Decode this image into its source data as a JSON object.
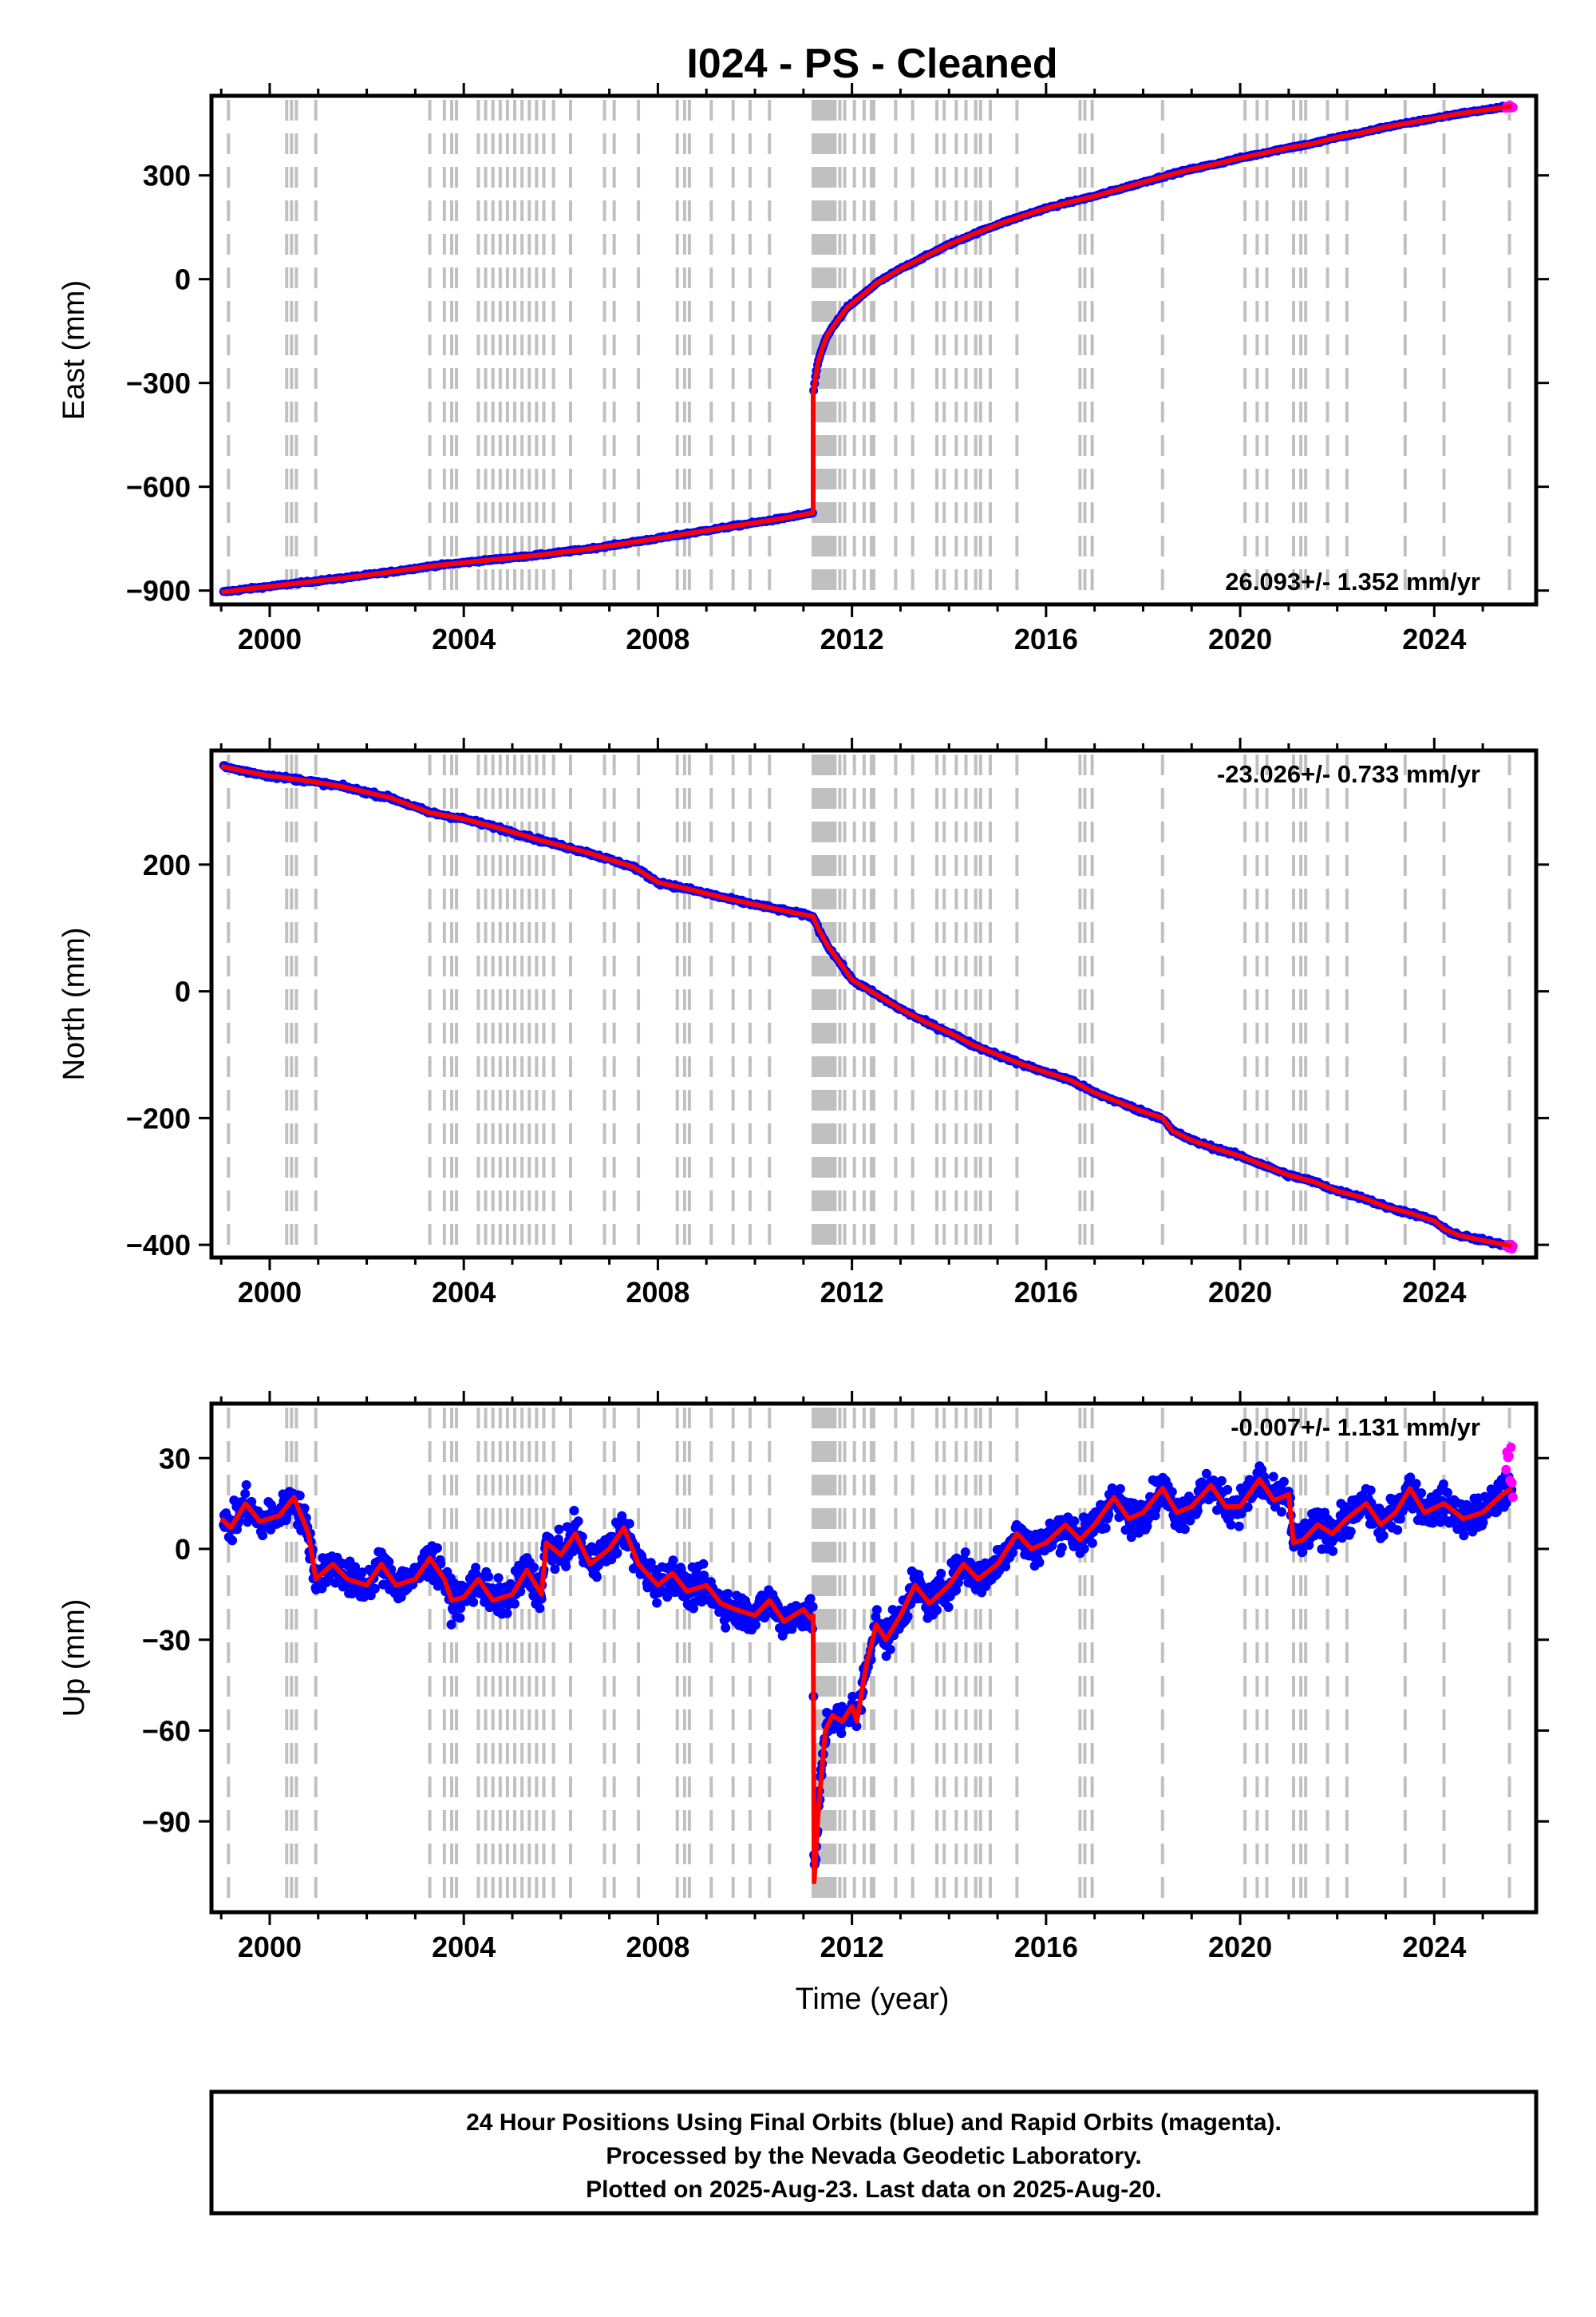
{
  "chart_data": {
    "type": "scatter",
    "title": "I024  - PS - Cleaned",
    "x_label": "Time (year)",
    "x_range": [
      1998.8,
      2026.1
    ],
    "x_ticks": [
      2000,
      2004,
      2008,
      2012,
      2016,
      2020,
      2024
    ],
    "series_colors": {
      "final_orbits": "#0000ff",
      "rapid_orbits": "#ff00ff",
      "model": "#ff0000",
      "events": "#c0c0c0"
    },
    "events": [
      1999.15,
      2000.35,
      2000.45,
      2000.55,
      2000.95,
      2003.3,
      2003.6,
      2003.75,
      2003.85,
      2004.3,
      2004.45,
      2004.6,
      2004.75,
      2004.9,
      2005.05,
      2005.2,
      2005.35,
      2005.5,
      2005.65,
      2005.85,
      2006.2,
      2006.9,
      2007.1,
      2007.6,
      2008.4,
      2008.55,
      2008.65,
      2009.1,
      2009.55,
      2009.9,
      2010.3,
      2011.2,
      2011.25,
      2011.3,
      2011.35,
      2011.4,
      2011.45,
      2011.5,
      2011.55,
      2011.6,
      2011.65,
      2011.75,
      2011.85,
      2012.05,
      2012.25,
      2012.4,
      2012.45,
      2012.9,
      2013.25,
      2013.75,
      2013.9,
      2014.15,
      2014.35,
      2014.55,
      2014.65,
      2014.85,
      2015.4,
      2016.7,
      2016.8,
      2016.95,
      2018.4,
      2020.1,
      2020.35,
      2020.55,
      2021.1,
      2021.25,
      2021.35,
      2021.8,
      2022.2,
      2023.4,
      2024.2,
      2025.55
    ],
    "panels": [
      {
        "component": "East",
        "ylabel": "East (mm)",
        "ylim": [
          -940,
          530
        ],
        "yticks": [
          -900,
          -600,
          -300,
          0,
          300
        ],
        "ytick_labels": [
          "−900",
          "−600",
          "−300",
          "0",
          "300"
        ],
        "rate_text": "26.093+/- 1.352 mm/yr",
        "rate_position": "bottom-right",
        "model_trace": [
          [
            1999.0,
            -905
          ],
          [
            1999.5,
            -896
          ],
          [
            2000.0,
            -888
          ],
          [
            2000.8,
            -875
          ],
          [
            2001.5,
            -864
          ],
          [
            2002.5,
            -846
          ],
          [
            2003.4,
            -828
          ],
          [
            2004.5,
            -812
          ],
          [
            2005.5,
            -798
          ],
          [
            2006.5,
            -781
          ],
          [
            2007.5,
            -760
          ],
          [
            2008.5,
            -738
          ],
          [
            2009.5,
            -715
          ],
          [
            2010.5,
            -693
          ],
          [
            2011.2,
            -675
          ],
          [
            2011.2,
            -330
          ],
          [
            2011.3,
            -240
          ],
          [
            2011.4,
            -195
          ],
          [
            2011.5,
            -160
          ],
          [
            2011.7,
            -120
          ],
          [
            2011.9,
            -82
          ],
          [
            2012.2,
            -48
          ],
          [
            2012.5,
            -12
          ],
          [
            2013.0,
            30
          ],
          [
            2013.5,
            65
          ],
          [
            2014.0,
            100
          ],
          [
            2014.5,
            130
          ],
          [
            2015.0,
            158
          ],
          [
            2015.5,
            182
          ],
          [
            2016.0,
            205
          ],
          [
            2016.5,
            223
          ],
          [
            2017.0,
            240
          ],
          [
            2017.5,
            260
          ],
          [
            2018.0,
            280
          ],
          [
            2018.5,
            300
          ],
          [
            2019.0,
            318
          ],
          [
            2019.5,
            333
          ],
          [
            2020.0,
            350
          ],
          [
            2020.5,
            365
          ],
          [
            2021.0,
            380
          ],
          [
            2021.5,
            392
          ],
          [
            2022.0,
            410
          ],
          [
            2022.5,
            423
          ],
          [
            2023.0,
            440
          ],
          [
            2023.5,
            452
          ],
          [
            2024.0,
            465
          ],
          [
            2024.5,
            478
          ],
          [
            2025.0,
            488
          ],
          [
            2025.6,
            500
          ]
        ]
      },
      {
        "component": "North",
        "ylabel": "North (mm)",
        "ylim": [
          -420,
          380
        ],
        "yticks": [
          -400,
          -200,
          0,
          200
        ],
        "ytick_labels": [
          "−400",
          "−200",
          "0",
          "200"
        ],
        "rate_text": "-23.026+/- 0.733 mm/yr",
        "rate_position": "top-right",
        "model_trace": [
          [
            1999.0,
            355
          ],
          [
            1999.5,
            347
          ],
          [
            2000.0,
            340
          ],
          [
            2000.7,
            333
          ],
          [
            2001.5,
            323
          ],
          [
            2002.5,
            305
          ],
          [
            2003.3,
            282
          ],
          [
            2004.0,
            272
          ],
          [
            2004.7,
            258
          ],
          [
            2005.5,
            240
          ],
          [
            2006.5,
            220
          ],
          [
            2007.5,
            196
          ],
          [
            2008.0,
            172
          ],
          [
            2008.7,
            160
          ],
          [
            2009.5,
            145
          ],
          [
            2010.3,
            132
          ],
          [
            2011.2,
            118
          ],
          [
            2011.3,
            100
          ],
          [
            2011.5,
            72
          ],
          [
            2011.8,
            40
          ],
          [
            2012.0,
            18
          ],
          [
            2012.5,
            -5
          ],
          [
            2013.0,
            -28
          ],
          [
            2013.5,
            -48
          ],
          [
            2014.0,
            -65
          ],
          [
            2014.5,
            -85
          ],
          [
            2015.0,
            -100
          ],
          [
            2015.5,
            -115
          ],
          [
            2016.0,
            -128
          ],
          [
            2016.5,
            -140
          ],
          [
            2017.0,
            -160
          ],
          [
            2017.5,
            -175
          ],
          [
            2018.0,
            -190
          ],
          [
            2018.4,
            -200
          ],
          [
            2018.6,
            -220
          ],
          [
            2019.0,
            -235
          ],
          [
            2019.5,
            -248
          ],
          [
            2020.0,
            -260
          ],
          [
            2020.5,
            -275
          ],
          [
            2021.0,
            -290
          ],
          [
            2021.5,
            -300
          ],
          [
            2022.0,
            -315
          ],
          [
            2022.5,
            -325
          ],
          [
            2023.0,
            -340
          ],
          [
            2023.5,
            -350
          ],
          [
            2024.0,
            -362
          ],
          [
            2024.2,
            -375
          ],
          [
            2024.5,
            -385
          ],
          [
            2025.0,
            -393
          ],
          [
            2025.6,
            -402
          ]
        ]
      },
      {
        "component": "Up",
        "ylabel": "Up (mm)",
        "ylim": [
          -120,
          48
        ],
        "yticks": [
          -90,
          -60,
          -30,
          0,
          30
        ],
        "ytick_labels": [
          "−90",
          "−60",
          "−30",
          "0",
          "30"
        ],
        "rate_text": "-0.007+/- 1.131 mm/yr",
        "rate_position": "top-right",
        "model_trace": [
          [
            1999.0,
            10
          ],
          [
            1999.2,
            7
          ],
          [
            1999.5,
            15
          ],
          [
            1999.8,
            9
          ],
          [
            2000.2,
            11
          ],
          [
            2000.5,
            17
          ],
          [
            2000.8,
            5
          ],
          [
            2000.95,
            -10
          ],
          [
            2001.3,
            -5
          ],
          [
            2001.6,
            -10
          ],
          [
            2002.0,
            -12
          ],
          [
            2002.3,
            -5
          ],
          [
            2002.6,
            -12
          ],
          [
            2003.0,
            -10
          ],
          [
            2003.3,
            -3
          ],
          [
            2003.6,
            -10
          ],
          [
            2003.75,
            -17
          ],
          [
            2004.0,
            -16
          ],
          [
            2004.3,
            -10
          ],
          [
            2004.6,
            -17
          ],
          [
            2005.0,
            -15
          ],
          [
            2005.3,
            -7
          ],
          [
            2005.6,
            -15
          ],
          [
            2005.7,
            2
          ],
          [
            2006.0,
            -2
          ],
          [
            2006.3,
            5
          ],
          [
            2006.6,
            -5
          ],
          [
            2007.0,
            0
          ],
          [
            2007.3,
            7
          ],
          [
            2007.6,
            -5
          ],
          [
            2008.0,
            -12
          ],
          [
            2008.3,
            -8
          ],
          [
            2008.6,
            -14
          ],
          [
            2009.0,
            -12
          ],
          [
            2009.3,
            -18
          ],
          [
            2009.6,
            -20
          ],
          [
            2010.0,
            -22
          ],
          [
            2010.3,
            -17
          ],
          [
            2010.6,
            -24
          ],
          [
            2011.0,
            -20
          ],
          [
            2011.15,
            -23
          ],
          [
            2011.2,
            -22
          ],
          [
            2011.22,
            -110
          ],
          [
            2011.3,
            -88
          ],
          [
            2011.45,
            -60
          ],
          [
            2011.6,
            -55
          ],
          [
            2011.8,
            -57
          ],
          [
            2012.0,
            -52
          ],
          [
            2012.1,
            -57
          ],
          [
            2012.3,
            -38
          ],
          [
            2012.5,
            -25
          ],
          [
            2012.7,
            -30
          ],
          [
            2013.0,
            -22
          ],
          [
            2013.3,
            -12
          ],
          [
            2013.6,
            -18
          ],
          [
            2014.0,
            -12
          ],
          [
            2014.3,
            -5
          ],
          [
            2014.6,
            -10
          ],
          [
            2015.0,
            -5
          ],
          [
            2015.4,
            5
          ],
          [
            2015.7,
            0
          ],
          [
            2016.0,
            2
          ],
          [
            2016.4,
            8
          ],
          [
            2016.7,
            3
          ],
          [
            2017.0,
            8
          ],
          [
            2017.4,
            17
          ],
          [
            2017.7,
            10
          ],
          [
            2018.0,
            12
          ],
          [
            2018.4,
            20
          ],
          [
            2018.7,
            12
          ],
          [
            2019.0,
            14
          ],
          [
            2019.4,
            21
          ],
          [
            2019.7,
            14
          ],
          [
            2020.0,
            14
          ],
          [
            2020.4,
            23
          ],
          [
            2020.7,
            16
          ],
          [
            2021.0,
            18
          ],
          [
            2021.1,
            2
          ],
          [
            2021.3,
            3
          ],
          [
            2021.6,
            8
          ],
          [
            2021.9,
            5
          ],
          [
            2022.2,
            10
          ],
          [
            2022.6,
            15
          ],
          [
            2022.9,
            8
          ],
          [
            2023.2,
            12
          ],
          [
            2023.5,
            20
          ],
          [
            2023.8,
            12
          ],
          [
            2024.2,
            15
          ],
          [
            2024.6,
            10
          ],
          [
            2025.0,
            12
          ],
          [
            2025.4,
            18
          ],
          [
            2025.6,
            20
          ]
        ]
      }
    ]
  },
  "footer": {
    "line1": "24 Hour Positions Using Final Orbits (blue) and Rapid Orbits (magenta).",
    "line2": "Processed by the Nevada Geodetic Laboratory.",
    "line3": "Plotted on 2025-Aug-23. Last data on 2025-Aug-20."
  }
}
